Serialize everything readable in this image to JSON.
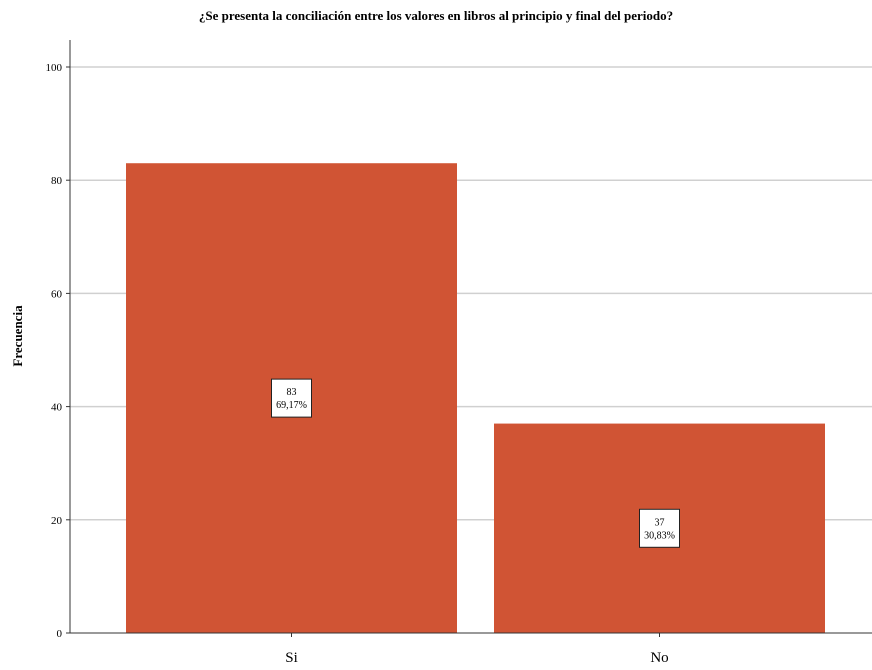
{
  "chart_data": {
    "type": "bar",
    "title": "¿Se presenta la conciliación entre los valores en libros al principio y final del periodo?",
    "xlabel": "",
    "ylabel": "Frecuencia",
    "ylim": [
      0,
      100
    ],
    "yticks": [
      0,
      20,
      40,
      60,
      80,
      100
    ],
    "categories": [
      "Si",
      "No"
    ],
    "values": [
      83,
      37
    ],
    "percent_labels": [
      "69,17%",
      "30,83%"
    ],
    "grid": true,
    "bar_color": "#d05434"
  }
}
